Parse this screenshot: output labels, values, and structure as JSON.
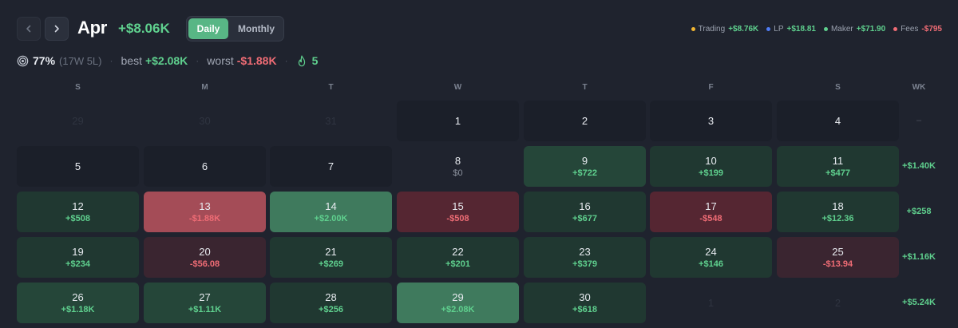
{
  "header": {
    "month": "Apr",
    "month_total": "+$8.06K",
    "tabs": {
      "daily": "Daily",
      "monthly": "Monthly"
    }
  },
  "legend": [
    {
      "name": "Trading",
      "value": "+$8.76K",
      "dot": "#f2b632",
      "color": "#5fd08e"
    },
    {
      "name": "LP",
      "value": "+$18.81",
      "dot": "#4f7cf5",
      "color": "#5fd08e"
    },
    {
      "name": "Maker",
      "value": "+$71.90",
      "dot": "#5fd08e",
      "color": "#5fd08e"
    },
    {
      "name": "Fees",
      "value": "-$795",
      "dot": "#ef6c75",
      "color": "#ef6c75"
    }
  ],
  "stats": {
    "win_rate": "77%",
    "record": "(17W 5L)",
    "best_label": "best",
    "best_value": "+$2.08K",
    "worst_label": "worst",
    "worst_value": "-$1.88K",
    "streak": "5"
  },
  "weekdays": [
    "S",
    "M",
    "T",
    "W",
    "T",
    "F",
    "S"
  ],
  "week_header": "WK",
  "colors": {
    "positive": "#5fd08e",
    "negative": "#ef6c75",
    "neutral_cell": "#1b1f29",
    "pos_low": "#203831",
    "pos_mid": "#254639",
    "pos_high": "#3f7a5d",
    "neg_low": "#3a2530",
    "neg_mid": "#552632",
    "neg_high": "#a44c57"
  },
  "weeks": [
    {
      "total": "–",
      "days": [
        {
          "day": "29",
          "out": true
        },
        {
          "day": "30",
          "out": true
        },
        {
          "day": "31",
          "out": true
        },
        {
          "day": "1"
        },
        {
          "day": "2"
        },
        {
          "day": "3"
        },
        {
          "day": "4"
        }
      ]
    },
    {
      "total": "+$1.40K",
      "days": [
        {
          "day": "5"
        },
        {
          "day": "6"
        },
        {
          "day": "7"
        },
        {
          "day": "8",
          "pnl": "$0",
          "zero": true
        },
        {
          "day": "9",
          "pnl": "+$722",
          "tone": "pos_mid"
        },
        {
          "day": "10",
          "pnl": "+$199",
          "tone": "pos_low"
        },
        {
          "day": "11",
          "pnl": "+$477",
          "tone": "pos_low"
        }
      ]
    },
    {
      "total": "+$258",
      "days": [
        {
          "day": "12",
          "pnl": "+$508",
          "tone": "pos_low"
        },
        {
          "day": "13",
          "pnl": "-$1.88K",
          "tone": "neg_high"
        },
        {
          "day": "14",
          "pnl": "+$2.00K",
          "tone": "pos_high"
        },
        {
          "day": "15",
          "pnl": "-$508",
          "tone": "neg_mid"
        },
        {
          "day": "16",
          "pnl": "+$677",
          "tone": "pos_low"
        },
        {
          "day": "17",
          "pnl": "-$548",
          "tone": "neg_mid"
        },
        {
          "day": "18",
          "pnl": "+$12.36",
          "tone": "pos_low"
        }
      ]
    },
    {
      "total": "+$1.16K",
      "days": [
        {
          "day": "19",
          "pnl": "+$234",
          "tone": "pos_low"
        },
        {
          "day": "20",
          "pnl": "-$56.08",
          "tone": "neg_low"
        },
        {
          "day": "21",
          "pnl": "+$269",
          "tone": "pos_low"
        },
        {
          "day": "22",
          "pnl": "+$201",
          "tone": "pos_low"
        },
        {
          "day": "23",
          "pnl": "+$379",
          "tone": "pos_low"
        },
        {
          "day": "24",
          "pnl": "+$146",
          "tone": "pos_low"
        },
        {
          "day": "25",
          "pnl": "-$13.94",
          "tone": "neg_low"
        }
      ]
    },
    {
      "total": "+$5.24K",
      "days": [
        {
          "day": "26",
          "pnl": "+$1.18K",
          "tone": "pos_mid"
        },
        {
          "day": "27",
          "pnl": "+$1.11K",
          "tone": "pos_mid"
        },
        {
          "day": "28",
          "pnl": "+$256",
          "tone": "pos_low"
        },
        {
          "day": "29",
          "pnl": "+$2.08K",
          "tone": "pos_high"
        },
        {
          "day": "30",
          "pnl": "+$618",
          "tone": "pos_low"
        },
        {
          "day": "1",
          "out": true
        },
        {
          "day": "2",
          "out": true
        }
      ]
    }
  ]
}
